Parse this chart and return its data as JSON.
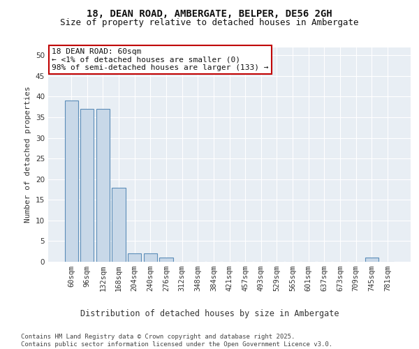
{
  "title1": "18, DEAN ROAD, AMBERGATE, BELPER, DE56 2GH",
  "title2": "Size of property relative to detached houses in Ambergate",
  "xlabel": "Distribution of detached houses by size in Ambergate",
  "ylabel": "Number of detached properties",
  "categories": [
    "60sqm",
    "96sqm",
    "132sqm",
    "168sqm",
    "204sqm",
    "240sqm",
    "276sqm",
    "312sqm",
    "348sqm",
    "384sqm",
    "421sqm",
    "457sqm",
    "493sqm",
    "529sqm",
    "565sqm",
    "601sqm",
    "637sqm",
    "673sqm",
    "709sqm",
    "745sqm",
    "781sqm"
  ],
  "values": [
    39,
    37,
    37,
    18,
    2,
    2,
    1,
    0,
    0,
    0,
    0,
    0,
    0,
    0,
    0,
    0,
    0,
    0,
    0,
    1,
    0
  ],
  "bar_color": "#c8d8e8",
  "bar_edge_color": "#5b8db8",
  "annotation_text": "18 DEAN ROAD: 60sqm\n← <1% of detached houses are smaller (0)\n98% of semi-detached houses are larger (133) →",
  "annotation_box_color": "#c00000",
  "ylim": [
    0,
    52
  ],
  "yticks": [
    0,
    5,
    10,
    15,
    20,
    25,
    30,
    35,
    40,
    45,
    50
  ],
  "background_color": "#e8eef4",
  "footer": "Contains HM Land Registry data © Crown copyright and database right 2025.\nContains public sector information licensed under the Open Government Licence v3.0.",
  "title1_fontsize": 10,
  "title2_fontsize": 9,
  "xlabel_fontsize": 8.5,
  "ylabel_fontsize": 8,
  "tick_fontsize": 7.5,
  "annotation_fontsize": 8,
  "footer_fontsize": 6.5
}
